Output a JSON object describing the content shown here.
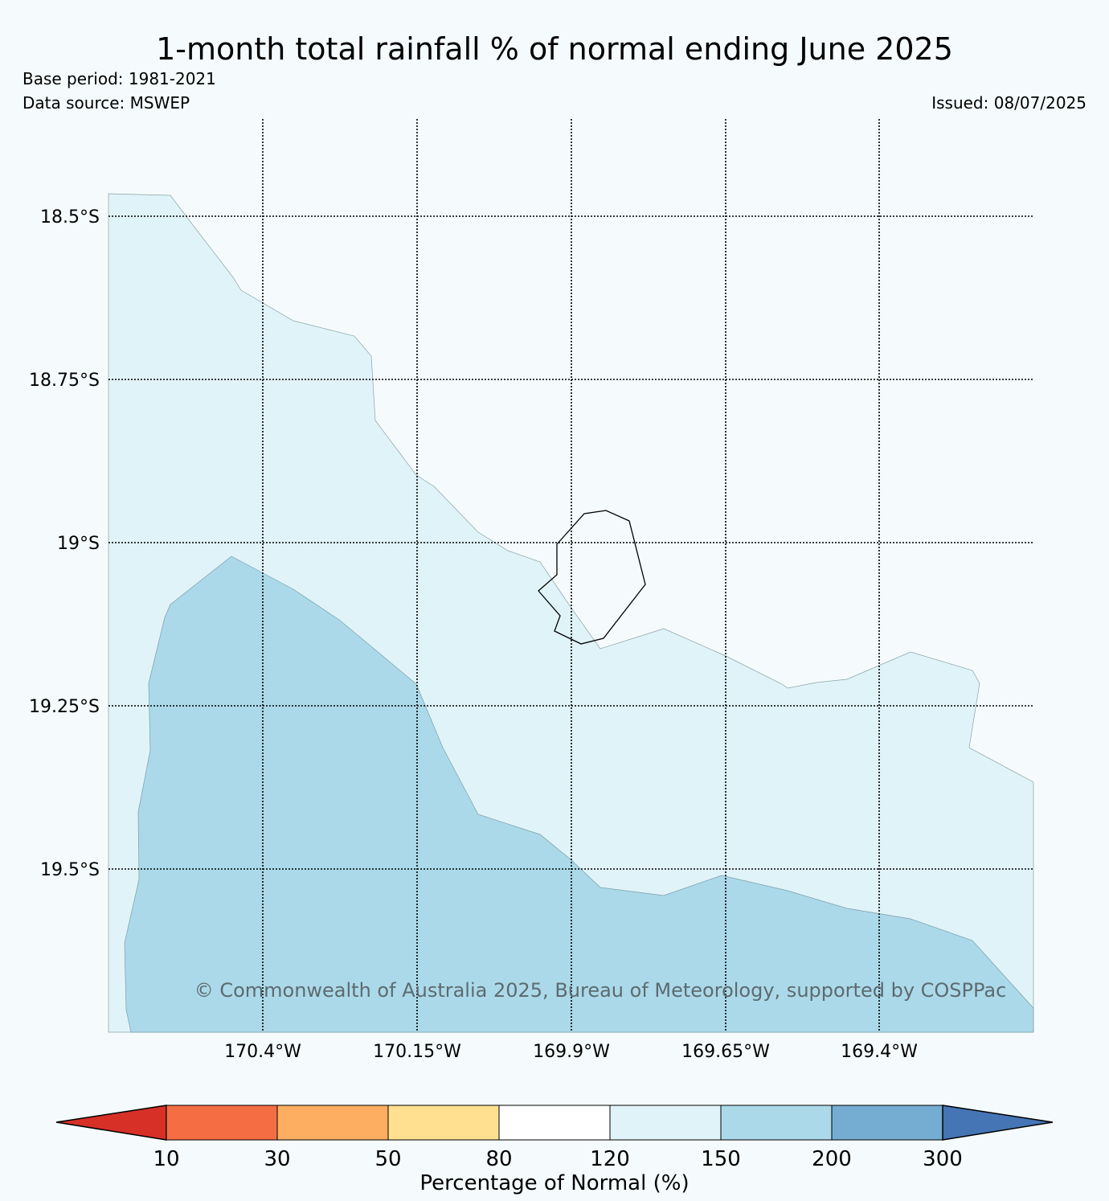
{
  "title": "1-month total rainfall % of normal ending June 2025",
  "base_period": "Base period: 1981-2021",
  "data_source": "Data source: MSWEP",
  "issued": "Issued: 08/07/2025",
  "copyright": "© Commonwealth of Australia 2025, Bureau of Meteorology, supported by COSPPac",
  "map": {
    "latitude_labels": [
      "18.5°S",
      "18.75°S",
      "19°S",
      "19.25°S",
      "19.5°S"
    ],
    "longitude_labels": [
      "170.4°W",
      "170.15°W",
      "169.9°W",
      "169.65°W",
      "169.4°W"
    ],
    "colors": {
      "background": "#f5fbfc",
      "band_120_150": "#e0f3f8",
      "band_150_200": "#abd9e9"
    }
  },
  "legend": {
    "title": "Percentage of Normal (%)",
    "ticks": [
      "10",
      "30",
      "50",
      "80",
      "120",
      "150",
      "200",
      "300"
    ],
    "colors": [
      "#d73027",
      "#f46d43",
      "#fdae61",
      "#fee090",
      "#ffffff",
      "#e0f3f8",
      "#abd9e9",
      "#74add1",
      "#4575b4"
    ]
  }
}
